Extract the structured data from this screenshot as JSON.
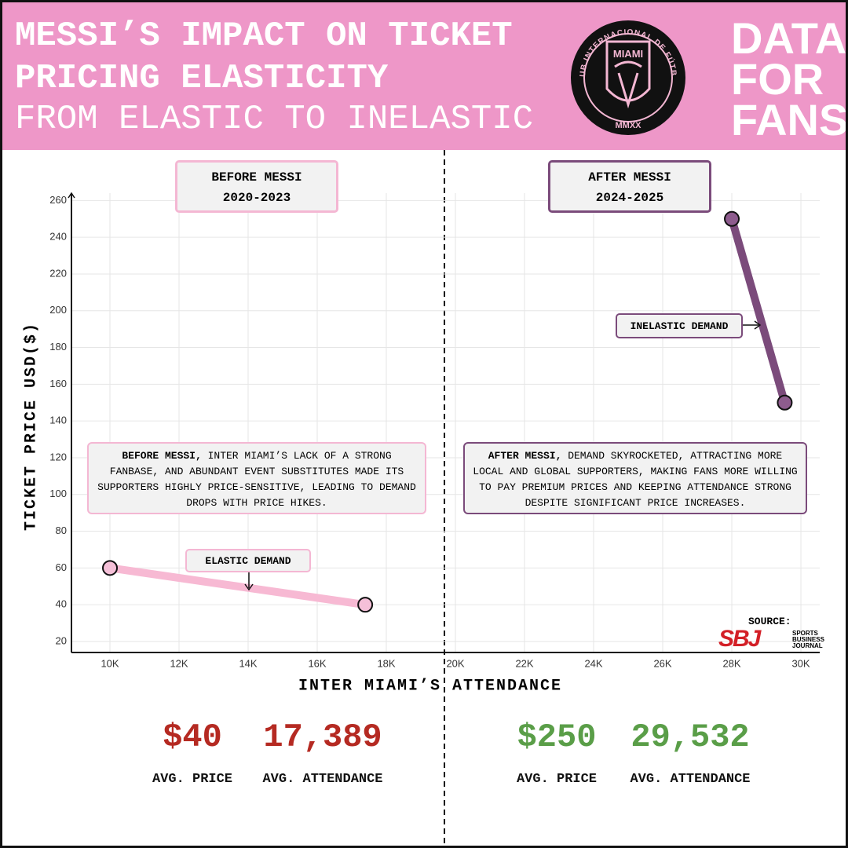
{
  "header": {
    "title": "MESSI’S IMPACT ON TICKET PRICING ELASTICITY",
    "subtitle": "FROM ELASTIC TO INELASTIC",
    "brand": "DATA FOR FANS",
    "logo": {
      "ring": "CLUB INTERNACIONAL DE FÚTBOL",
      "name": "MIAMI",
      "year": "MMXX"
    }
  },
  "chart_data": {
    "type": "line",
    "x_label": "INTER MIAMI’S ATTENDANCE",
    "y_label": "TICKET PRICE USD($)",
    "xlim": [
      8886,
      30545
    ],
    "ylim": [
      14,
      264
    ],
    "xticks": [
      {
        "value": 10000,
        "label": "10K"
      },
      {
        "value": 12000,
        "label": "12K"
      },
      {
        "value": 14000,
        "label": "14K"
      },
      {
        "value": 16000,
        "label": "16K"
      },
      {
        "value": 18000,
        "label": "18K"
      },
      {
        "value": 20000,
        "label": "20K"
      },
      {
        "value": 22000,
        "label": "22K"
      },
      {
        "value": 24000,
        "label": "24K"
      },
      {
        "value": 26000,
        "label": "26K"
      },
      {
        "value": 28000,
        "label": "28K"
      },
      {
        "value": 30000,
        "label": "30K"
      }
    ],
    "yticks": [
      20,
      40,
      60,
      80,
      100,
      120,
      140,
      160,
      180,
      200,
      220,
      240,
      260
    ],
    "grid": true,
    "series": [
      {
        "color": "#f7b9d3",
        "point_color": "#f5c0d8",
        "x": [
          10000,
          17389
        ],
        "values": [
          60,
          40
        ]
      },
      {
        "color": "#7b4b7b",
        "point_color": "#8e5c8e",
        "x": [
          28000,
          29532
        ],
        "values": [
          250,
          150
        ]
      }
    ],
    "panels": [
      {
        "title": "BEFORE MESSI",
        "period": "2020-2023",
        "lead": "BEFORE MESSI,",
        "text": "INTER MIAMI’S LACK OF A STRONG FANBASE, AND ABUNDANT EVENT SUBSTITUTES MADE ITS SUPPORTERS HIGHLY PRICE-SENSITIVE, LEADING TO DEMAND DROPS WITH PRICE HIKES.",
        "demand": "ELASTIC DEMAND"
      },
      {
        "title": "AFTER MESSI",
        "period": "2024-2025",
        "lead": "AFTER MESSI,",
        "text": "DEMAND SKYROCKETED, ATTRACTING MORE LOCAL AND GLOBAL SUPPORTERS, MAKING FANS MORE WILLING TO PAY PREMIUM PRICES AND KEEPING ATTENDANCE STRONG DESPITE SIGNIFICANT PRICE INCREASES.",
        "demand": "INELASTIC DEMAND"
      }
    ],
    "source": {
      "label": "SOURCE:",
      "logo": "SBJ",
      "name": "SPORTS BUSINESS JOURNAL"
    }
  },
  "stats": [
    {
      "price": "$40",
      "price_label": "AVG. PRICE",
      "attendance": "17,389",
      "attendance_label": "AVG. ATTENDANCE"
    },
    {
      "price": "$250",
      "price_label": "AVG. PRICE",
      "attendance": "29,532",
      "attendance_label": "AVG. ATTENDANCE"
    }
  ]
}
